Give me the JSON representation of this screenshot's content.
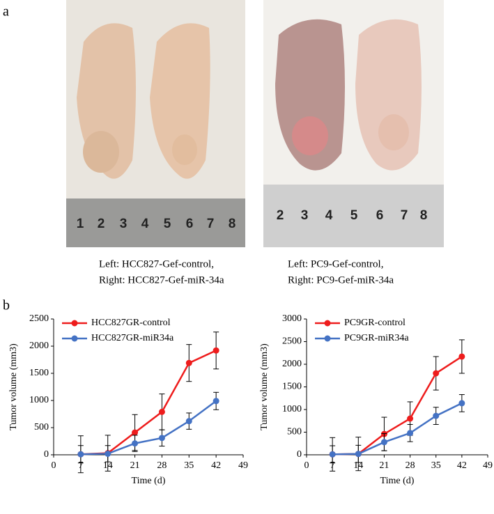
{
  "panel_labels": [
    "a",
    "b"
  ],
  "photos": [
    {
      "ruler": [
        "1",
        "2",
        "3",
        "4",
        "5",
        "6",
        "7",
        "8"
      ],
      "caption": [
        "Left: HCC827-Gef-control,",
        "Right: HCC827-Gef-miR-34a"
      ]
    },
    {
      "ruler": [
        "2",
        "3",
        "4",
        "5",
        "6",
        "7",
        "8"
      ],
      "caption": [
        "Left: PC9-Gef-control,",
        "Right: PC9-Gef-miR-34a"
      ]
    }
  ],
  "chart_data": [
    {
      "type": "line",
      "x_label": "Time (d)",
      "y_label": "Tumor volume (mm3)",
      "x": [
        7,
        14,
        21,
        28,
        35,
        42
      ],
      "xlim": [
        0,
        49
      ],
      "xticks": [
        0,
        7,
        14,
        21,
        28,
        35,
        42,
        49
      ],
      "ylim": [
        0,
        2500
      ],
      "yticks": [
        0,
        500,
        1000,
        1500,
        2000,
        2500
      ],
      "legend": "upper left",
      "series": [
        {
          "name": "HCC827GR-control",
          "color": "#ee1c1c",
          "values": [
            10,
            30,
            410,
            790,
            1690,
            1920
          ],
          "errors": [
            340,
            330,
            330,
            330,
            340,
            340
          ]
        },
        {
          "name": "HCC827GR-miR34a",
          "color": "#4472c4",
          "values": [
            10,
            20,
            210,
            310,
            620,
            990
          ],
          "errors": [
            160,
            150,
            150,
            150,
            150,
            160
          ]
        }
      ]
    },
    {
      "type": "line",
      "x_label": "Time (d)",
      "y_label": "Tumor volume (mm3)",
      "x": [
        7,
        14,
        21,
        28,
        35,
        42
      ],
      "xlim": [
        0,
        49
      ],
      "xticks": [
        0,
        7,
        14,
        21,
        28,
        35,
        42,
        49
      ],
      "ylim": [
        0,
        3000
      ],
      "yticks": [
        0,
        500,
        1000,
        1500,
        2000,
        2500,
        3000
      ],
      "legend": "upper left",
      "series": [
        {
          "name": "PC9GR-control",
          "color": "#ee1c1c",
          "values": [
            10,
            20,
            460,
            800,
            1800,
            2170
          ],
          "errors": [
            370,
            370,
            370,
            370,
            370,
            370
          ]
        },
        {
          "name": "PC9GR-miR34a",
          "color": "#4472c4",
          "values": [
            10,
            20,
            280,
            480,
            860,
            1140
          ],
          "errors": [
            190,
            190,
            190,
            190,
            190,
            190
          ]
        }
      ]
    }
  ]
}
